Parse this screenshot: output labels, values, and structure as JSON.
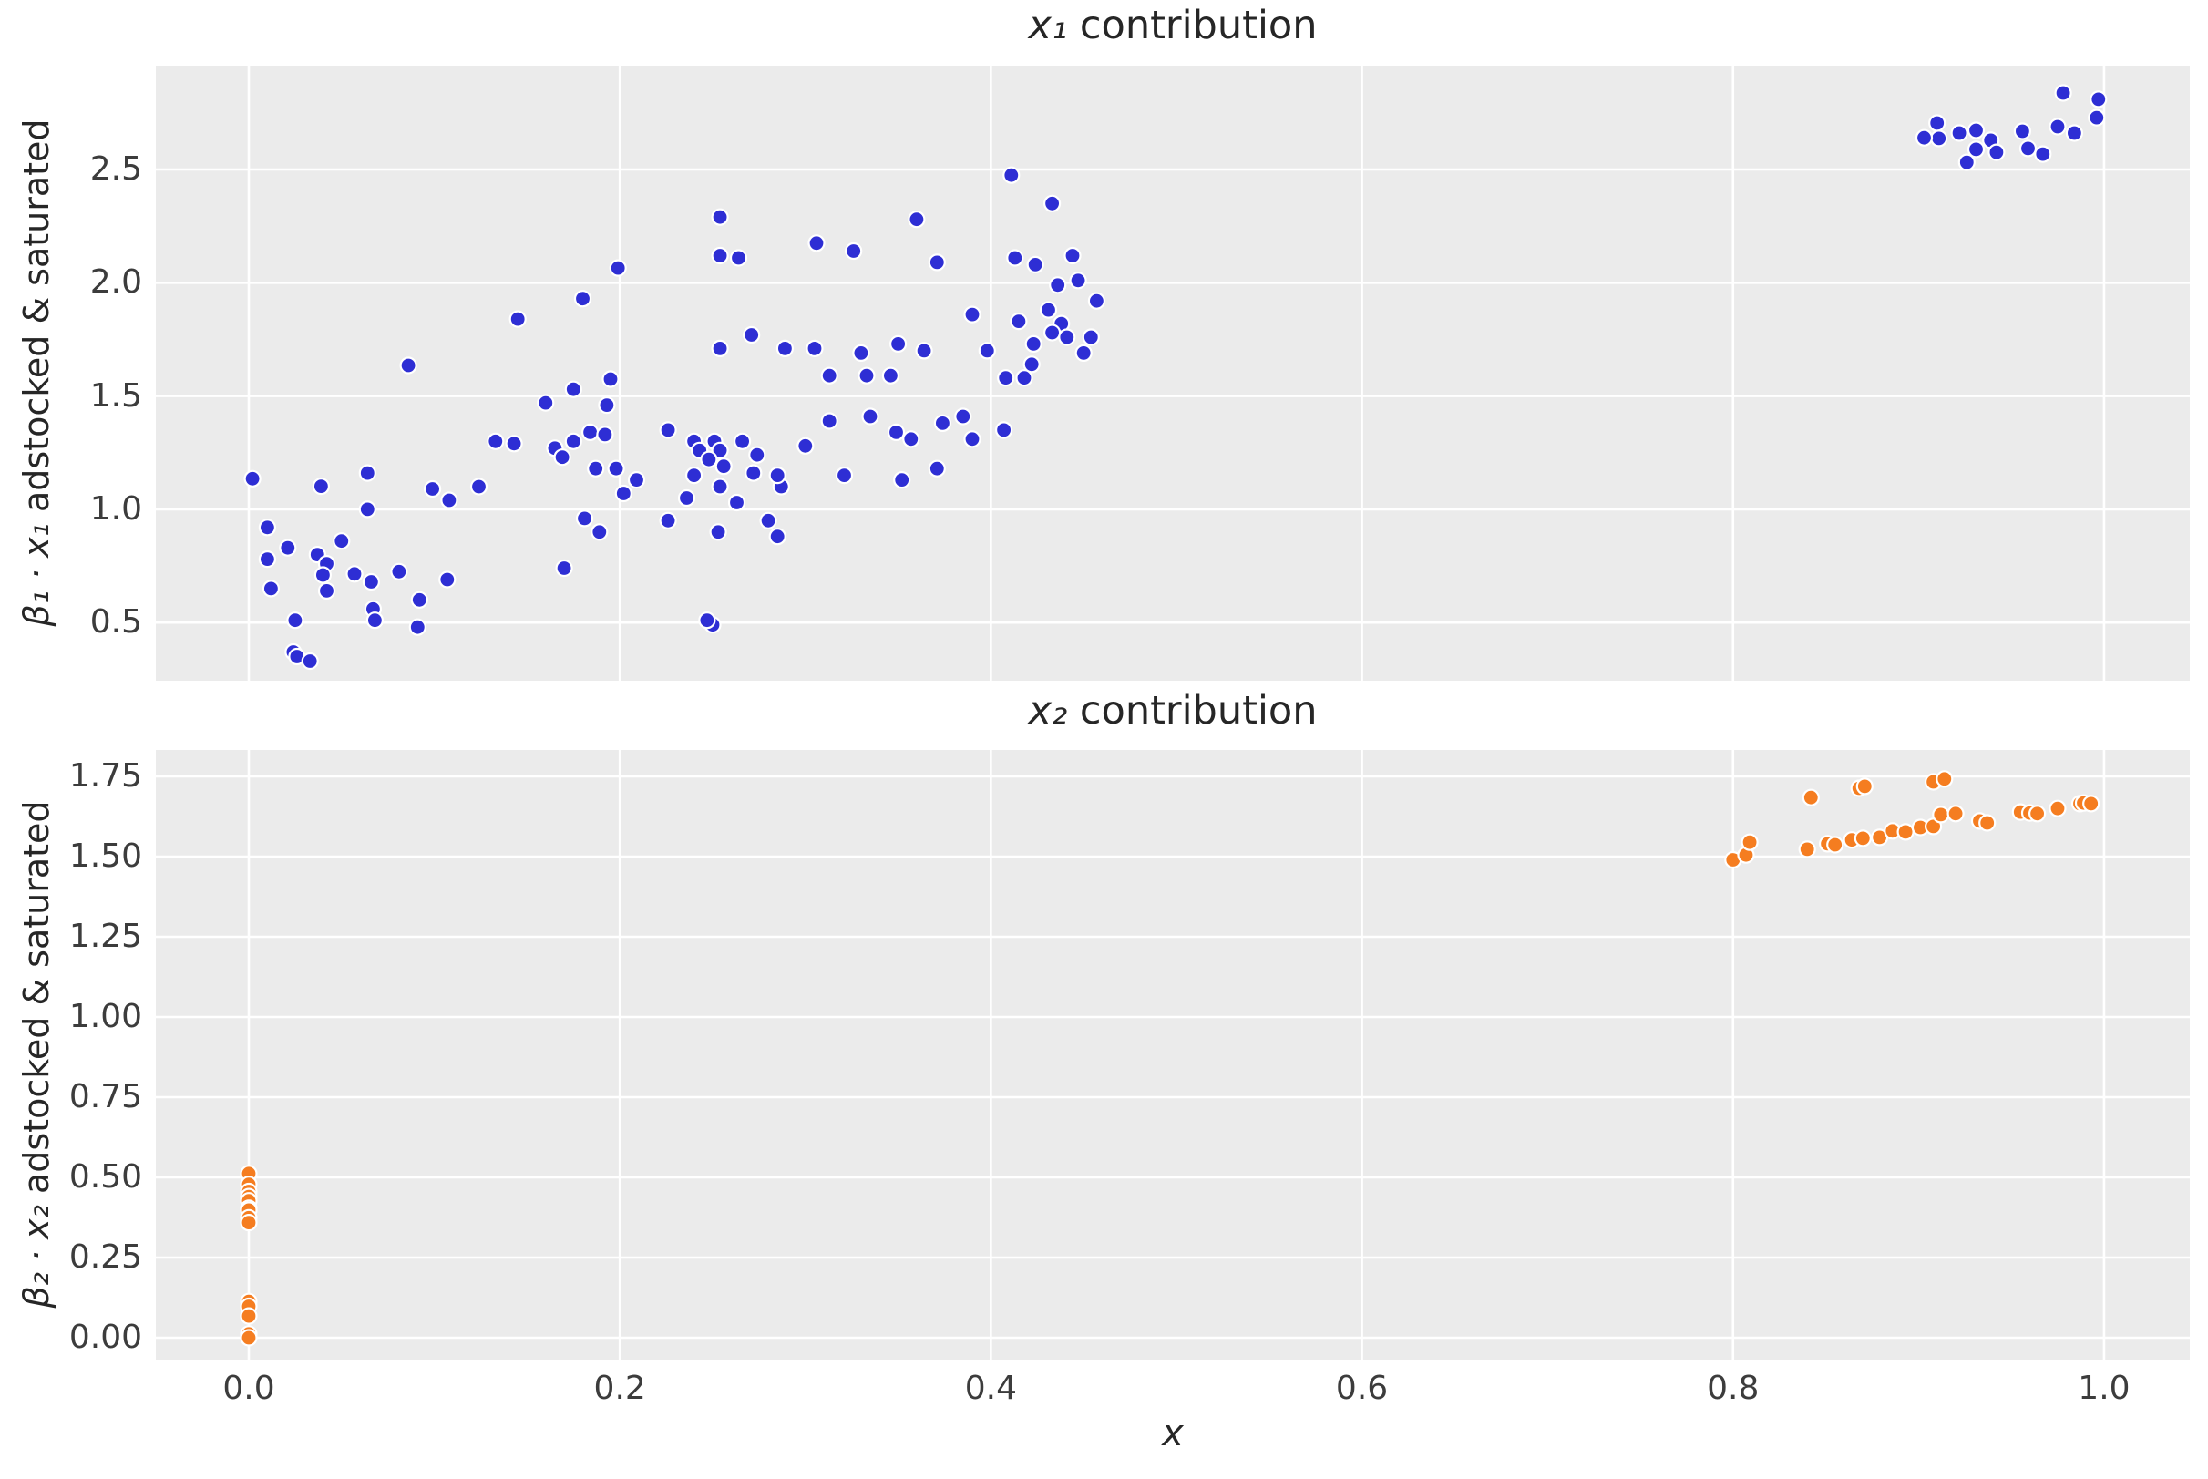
{
  "figure": {
    "background": "#ffffff",
    "panel_background": "#ebebeb",
    "grid_color": "#ffffff",
    "title_color": "#262626",
    "tick_color": "#3c3c3c",
    "xlabel": "x",
    "x_ticks": [
      0.0,
      0.2,
      0.4,
      0.6,
      0.8,
      1.0
    ],
    "x_tick_labels": [
      "0.0",
      "0.2",
      "0.4",
      "0.6",
      "0.8",
      "1.0"
    ]
  },
  "chart_data": [
    {
      "type": "scatter",
      "title_math": "x₁",
      "title_rest": " contribution",
      "ylabel_math": "β₁ · x₁",
      "ylabel_rest": " adstocked & saturated",
      "xlim": [
        -0.0501,
        1.0462
      ],
      "ylim": [
        0.2434,
        2.9586
      ],
      "x_grid": [
        0.0,
        0.2,
        0.4,
        0.6,
        0.8,
        1.0
      ],
      "y_ticks": [
        0.5,
        1.0,
        1.5,
        2.0,
        2.5
      ],
      "y_tick_labels": [
        "0.5",
        "1.0",
        "1.5",
        "2.0",
        "2.5"
      ],
      "grid": true,
      "legend": null,
      "marker": {
        "radius_px": 8.5,
        "edge_color": "#ffffff",
        "edge_width": 2.2
      },
      "series": [
        {
          "name": "x1 adstocked & saturated contribution",
          "color": "#2e2ed4",
          "points": [
            [
              0.91,
              2.705
            ],
            [
              0.911,
              2.637
            ],
            [
              0.922,
              2.661
            ],
            [
              0.931,
              2.673
            ],
            [
              0.931,
              2.589
            ],
            [
              0.939,
              2.629
            ],
            [
              0.942,
              2.576
            ],
            [
              0.926,
              2.532
            ],
            [
              0.956,
              2.669
            ],
            [
              0.959,
              2.593
            ],
            [
              0.967,
              2.568
            ],
            [
              0.975,
              2.689
            ],
            [
              0.978,
              2.838
            ],
            [
              0.984,
              2.661
            ],
            [
              0.996,
              2.729
            ],
            [
              0.997,
              2.81
            ],
            [
              0.903,
              2.64
            ],
            [
              0.411,
              2.475
            ],
            [
              0.433,
              2.35
            ],
            [
              0.254,
              2.29
            ],
            [
              0.36,
              2.28
            ],
            [
              0.306,
              2.175
            ],
            [
              0.254,
              2.12
            ],
            [
              0.264,
              2.11
            ],
            [
              0.326,
              2.14
            ],
            [
              0.413,
              2.11
            ],
            [
              0.444,
              2.12
            ],
            [
              0.424,
              2.08
            ],
            [
              0.371,
              2.09
            ],
            [
              0.199,
              2.065
            ],
            [
              0.447,
              2.01
            ],
            [
              0.436,
              1.99
            ],
            [
              0.18,
              1.93
            ],
            [
              0.457,
              1.92
            ],
            [
              0.145,
              1.84
            ],
            [
              0.39,
              1.86
            ],
            [
              0.415,
              1.83
            ],
            [
              0.431,
              1.88
            ],
            [
              0.438,
              1.82
            ],
            [
              0.433,
              1.78
            ],
            [
              0.441,
              1.76
            ],
            [
              0.454,
              1.76
            ],
            [
              0.423,
              1.73
            ],
            [
              0.398,
              1.7
            ],
            [
              0.45,
              1.69
            ],
            [
              0.422,
              1.64
            ],
            [
              0.408,
              1.58
            ],
            [
              0.418,
              1.58
            ],
            [
              0.271,
              1.77
            ],
            [
              0.254,
              1.71
            ],
            [
              0.289,
              1.71
            ],
            [
              0.305,
              1.71
            ],
            [
              0.33,
              1.69
            ],
            [
              0.35,
              1.73
            ],
            [
              0.364,
              1.7
            ],
            [
              0.333,
              1.59
            ],
            [
              0.313,
              1.59
            ],
            [
              0.346,
              1.59
            ],
            [
              0.226,
              1.35
            ],
            [
              0.313,
              1.39
            ],
            [
              0.335,
              1.41
            ],
            [
              0.349,
              1.34
            ],
            [
              0.357,
              1.31
            ],
            [
              0.374,
              1.38
            ],
            [
              0.385,
              1.41
            ],
            [
              0.39,
              1.31
            ],
            [
              0.407,
              1.35
            ],
            [
              0.287,
              1.1
            ],
            [
              0.321,
              1.15
            ],
            [
              0.352,
              1.13
            ],
            [
              0.371,
              1.18
            ],
            [
              0.3,
              1.28
            ],
            [
              0.274,
              1.24
            ],
            [
              0.272,
              1.16
            ],
            [
              0.285,
              1.15
            ],
            [
              0.266,
              1.3
            ],
            [
              0.24,
              1.3
            ],
            [
              0.243,
              1.26
            ],
            [
              0.251,
              1.3
            ],
            [
              0.254,
              1.26
            ],
            [
              0.248,
              1.22
            ],
            [
              0.256,
              1.19
            ],
            [
              0.24,
              1.15
            ],
            [
              0.254,
              1.1
            ],
            [
              0.165,
              1.27
            ],
            [
              0.169,
              1.23
            ],
            [
              0.175,
              1.3
            ],
            [
              0.184,
              1.34
            ],
            [
              0.192,
              1.33
            ],
            [
              0.187,
              1.18
            ],
            [
              0.198,
              1.18
            ],
            [
              0.209,
              1.13
            ],
            [
              0.202,
              1.07
            ],
            [
              0.175,
              1.53
            ],
            [
              0.193,
              1.46
            ],
            [
              0.16,
              1.47
            ],
            [
              0.195,
              1.575
            ],
            [
              0.086,
              1.635
            ],
            [
              0.002,
              1.135
            ],
            [
              0.039,
              1.102
            ],
            [
              0.064,
              1.16
            ],
            [
              0.099,
              1.09
            ],
            [
              0.124,
              1.1
            ],
            [
              0.108,
              1.04
            ],
            [
              0.133,
              1.3
            ],
            [
              0.143,
              1.29
            ],
            [
              0.064,
              1.0
            ],
            [
              0.01,
              0.92
            ],
            [
              0.01,
              0.78
            ],
            [
              0.012,
              0.65
            ],
            [
              0.021,
              0.83
            ],
            [
              0.037,
              0.8
            ],
            [
              0.05,
              0.86
            ],
            [
              0.042,
              0.76
            ],
            [
              0.04,
              0.71
            ],
            [
              0.042,
              0.64
            ],
            [
              0.057,
              0.715
            ],
            [
              0.066,
              0.68
            ],
            [
              0.067,
              0.56
            ],
            [
              0.081,
              0.725
            ],
            [
              0.092,
              0.6
            ],
            [
              0.107,
              0.69
            ],
            [
              0.068,
              0.51
            ],
            [
              0.025,
              0.51
            ],
            [
              0.024,
              0.37
            ],
            [
              0.026,
              0.35
            ],
            [
              0.033,
              0.33
            ],
            [
              0.091,
              0.48
            ],
            [
              0.236,
              1.05
            ],
            [
              0.263,
              1.03
            ],
            [
              0.181,
              0.96
            ],
            [
              0.189,
              0.9
            ],
            [
              0.226,
              0.95
            ],
            [
              0.28,
              0.95
            ],
            [
              0.285,
              0.88
            ],
            [
              0.253,
              0.9
            ],
            [
              0.17,
              0.74
            ],
            [
              0.25,
              0.49
            ],
            [
              0.247,
              0.51
            ]
          ]
        }
      ]
    },
    {
      "type": "scatter",
      "title_math": "x₂",
      "title_rest": " contribution",
      "ylabel_math": "β₂ · x₂",
      "ylabel_rest": " adstocked & saturated",
      "xlim": [
        -0.0501,
        1.0462
      ],
      "ylim": [
        -0.0682,
        1.8324
      ],
      "x_grid": [
        0.0,
        0.2,
        0.4,
        0.6,
        0.8,
        1.0
      ],
      "y_ticks": [
        0.0,
        0.25,
        0.5,
        0.75,
        1.0,
        1.25,
        1.5,
        1.75
      ],
      "y_tick_labels": [
        "0.00",
        "0.25",
        "0.50",
        "0.75",
        "1.00",
        "1.25",
        "1.50",
        "1.75"
      ],
      "grid": true,
      "legend": null,
      "marker": {
        "radius_px": 8.5,
        "edge_color": "#ffffff",
        "edge_width": 2.2
      },
      "series": [
        {
          "name": "x2 adstocked & saturated contribution",
          "color": "#f57d20",
          "points": [
            [
              0.0,
              0.512
            ],
            [
              0.0,
              0.478
            ],
            [
              0.0,
              0.456
            ],
            [
              0.0,
              0.44
            ],
            [
              0.0,
              0.427
            ],
            [
              0.0,
              0.404
            ],
            [
              0.0,
              0.398
            ],
            [
              0.0,
              0.374
            ],
            [
              0.0,
              0.359
            ],
            [
              0.0,
              0.113
            ],
            [
              0.0,
              0.098
            ],
            [
              0.0,
              0.068
            ],
            [
              0.0,
              0.012
            ],
            [
              0.0,
              0.0
            ],
            [
              0.8,
              1.49
            ],
            [
              0.807,
              1.505
            ],
            [
              0.809,
              1.545
            ],
            [
              0.84,
              1.523
            ],
            [
              0.842,
              1.684
            ],
            [
              0.851,
              1.54
            ],
            [
              0.855,
              1.537
            ],
            [
              0.864,
              1.552
            ],
            [
              0.868,
              1.713
            ],
            [
              0.871,
              1.719
            ],
            [
              0.87,
              1.557
            ],
            [
              0.879,
              1.56
            ],
            [
              0.886,
              1.58
            ],
            [
              0.893,
              1.577
            ],
            [
              0.901,
              1.591
            ],
            [
              0.908,
              1.733
            ],
            [
              0.914,
              1.742
            ],
            [
              0.908,
              1.594
            ],
            [
              0.912,
              1.631
            ],
            [
              0.92,
              1.634
            ],
            [
              0.933,
              1.611
            ],
            [
              0.937,
              1.605
            ],
            [
              0.955,
              1.639
            ],
            [
              0.96,
              1.636
            ],
            [
              0.964,
              1.634
            ],
            [
              0.975,
              1.65
            ],
            [
              0.987,
              1.665
            ],
            [
              0.989,
              1.667
            ],
            [
              0.993,
              1.665
            ]
          ]
        }
      ]
    }
  ]
}
